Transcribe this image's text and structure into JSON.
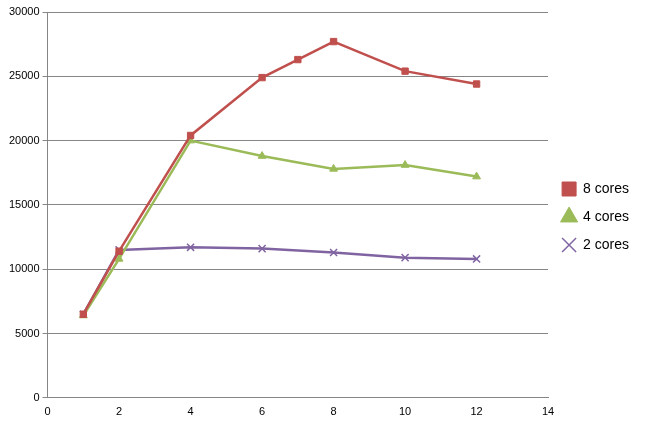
{
  "chart_data": {
    "type": "line",
    "series": [
      {
        "name": "8 cores",
        "color": "#c0504d",
        "marker": "square",
        "x": [
          1,
          2,
          4,
          6,
          7,
          8,
          10,
          12
        ],
        "values": [
          6500,
          11400,
          20400,
          24900,
          26300,
          27700,
          25400,
          24400
        ]
      },
      {
        "name": "4 cores",
        "color": "#9bbb59",
        "marker": "triangle",
        "x": [
          1,
          2,
          4,
          6,
          8,
          10,
          12
        ],
        "values": [
          6400,
          10800,
          20000,
          18800,
          17800,
          18100,
          17200
        ]
      },
      {
        "name": "2 cores",
        "color": "#8064a2",
        "marker": "x",
        "x": [
          1,
          2,
          4,
          6,
          8,
          10,
          12
        ],
        "values": [
          6500,
          11500,
          11700,
          11600,
          11300,
          10900,
          10800
        ]
      }
    ],
    "xlim": [
      0,
      14
    ],
    "xticks": [
      0,
      2,
      4,
      6,
      8,
      10,
      12,
      14
    ],
    "ylim": [
      0,
      30000
    ],
    "yticks": [
      0,
      5000,
      10000,
      15000,
      20000,
      25000,
      30000
    ],
    "grid": "y",
    "legend": "right"
  }
}
